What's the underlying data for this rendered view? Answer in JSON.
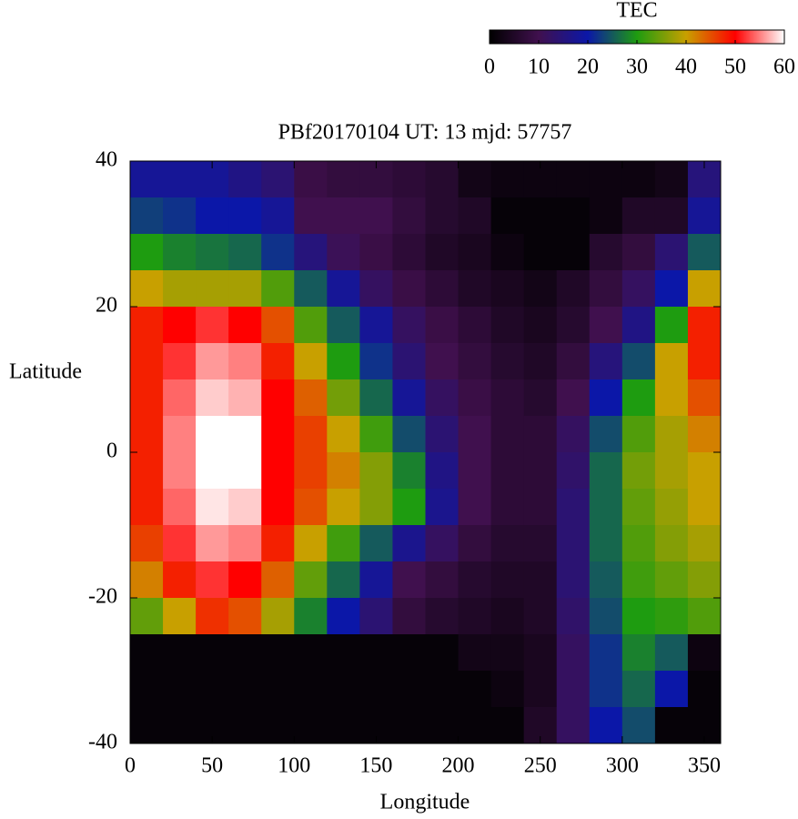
{
  "chart_data": {
    "type": "heatmap",
    "title": "PBf20170104  UT: 13  mjd: 57757",
    "x_label": "Longitude",
    "y_label": "Latitude",
    "colorbar_label": "TEC",
    "x": [
      10,
      30,
      50,
      70,
      90,
      110,
      130,
      150,
      170,
      190,
      210,
      230,
      250,
      270,
      290,
      310,
      330,
      350
    ],
    "y": [
      37.5,
      32.5,
      27.5,
      22.5,
      17.5,
      12.5,
      7.5,
      2.5,
      -2.5,
      -7.5,
      -12.5,
      -17.5,
      -22.5,
      -27.5,
      -32.5,
      -37.5
    ],
    "z": [
      [
        18,
        18,
        18,
        16,
        14,
        9,
        8,
        8,
        7,
        6,
        3,
        2,
        2,
        2,
        2,
        2,
        3,
        15
      ],
      [
        23,
        22,
        20,
        20,
        18,
        10,
        10,
        10,
        8,
        6,
        5,
        1,
        1,
        1,
        2,
        5,
        5,
        18
      ],
      [
        30,
        28,
        27,
        26,
        22,
        15,
        11,
        9,
        7,
        5,
        4,
        2,
        1,
        1,
        6,
        8,
        14,
        25
      ],
      [
        40,
        38,
        38,
        38,
        33,
        25,
        18,
        12,
        9,
        7,
        5,
        4,
        3,
        5,
        8,
        12,
        20,
        40
      ],
      [
        48,
        50,
        52,
        50,
        45,
        33,
        25,
        18,
        12,
        9,
        7,
        5,
        4,
        6,
        10,
        16,
        30,
        48
      ],
      [
        48,
        52,
        56,
        55,
        48,
        40,
        30,
        22,
        14,
        10,
        8,
        6,
        5,
        8,
        15,
        24,
        40,
        48
      ],
      [
        48,
        54,
        58,
        57,
        50,
        44,
        35,
        26,
        18,
        12,
        9,
        7,
        6,
        10,
        20,
        30,
        40,
        45
      ],
      [
        48,
        55,
        60,
        60,
        50,
        46,
        40,
        32,
        24,
        14,
        10,
        7,
        7,
        12,
        24,
        33,
        38,
        42
      ],
      [
        48,
        55,
        60,
        60,
        50,
        46,
        42,
        36,
        28,
        16,
        10,
        7,
        7,
        13,
        26,
        35,
        38,
        40
      ],
      [
        48,
        54,
        59,
        58,
        50,
        45,
        40,
        36,
        30,
        17,
        10,
        7,
        7,
        14,
        26,
        34,
        37,
        40
      ],
      [
        46,
        52,
        56,
        55,
        48,
        40,
        32,
        25,
        17,
        12,
        8,
        6,
        6,
        14,
        26,
        33,
        36,
        38
      ],
      [
        42,
        48,
        52,
        50,
        44,
        34,
        26,
        18,
        10,
        8,
        6,
        5,
        5,
        14,
        25,
        32,
        34,
        36
      ],
      [
        34,
        40,
        47,
        45,
        38,
        28,
        20,
        14,
        8,
        6,
        5,
        4,
        5,
        13,
        24,
        30,
        31,
        33
      ],
      [
        1,
        1,
        1,
        1,
        1,
        1,
        1,
        1,
        1,
        1,
        3,
        3,
        4,
        12,
        22,
        28,
        25,
        2
      ],
      [
        1,
        1,
        1,
        1,
        1,
        1,
        1,
        1,
        1,
        1,
        1,
        2,
        4,
        12,
        22,
        26,
        20,
        1
      ],
      [
        1,
        1,
        1,
        1,
        1,
        1,
        1,
        1,
        1,
        1,
        1,
        1,
        5,
        12,
        20,
        24,
        1,
        1
      ]
    ],
    "colormap": [
      "#000000",
      "#40104e",
      "#0b17a8",
      "#1e9c10",
      "#c8a000",
      "#ff0000",
      "#ffffff"
    ],
    "zlim": [
      0,
      60
    ],
    "cbticks": [
      0,
      10,
      20,
      30,
      40,
      50,
      60
    ],
    "xlim": [
      0,
      360
    ],
    "xticks": [
      0,
      50,
      100,
      150,
      200,
      250,
      300,
      350
    ],
    "ylim": [
      -40,
      40
    ],
    "yticks": [
      -40,
      -20,
      0,
      20,
      40
    ]
  }
}
